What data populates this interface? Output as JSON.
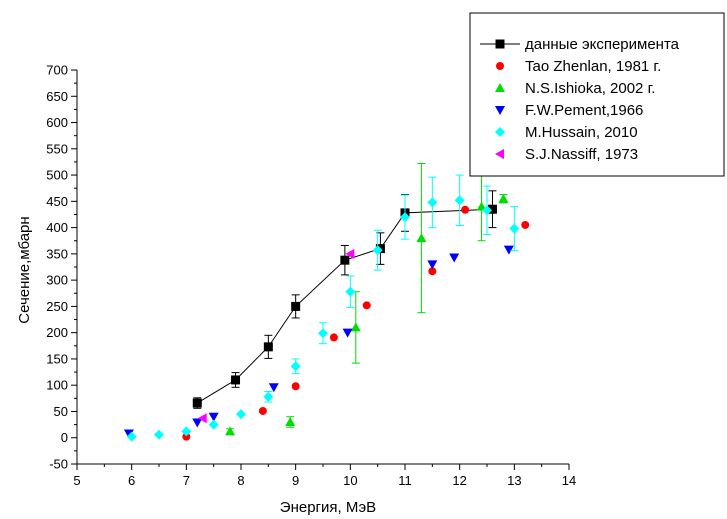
{
  "chart_data": {
    "type": "scatter",
    "title": "",
    "xlabel": "Энергия, МэВ",
    "ylabel": "Сечение,мбарн",
    "xlim": [
      5,
      14
    ],
    "ylim": [
      -50,
      700
    ],
    "xticks": [
      5,
      6,
      7,
      8,
      9,
      10,
      11,
      12,
      13,
      14
    ],
    "yticks": [
      -50,
      0,
      50,
      100,
      150,
      200,
      250,
      300,
      350,
      400,
      450,
      500,
      550,
      600,
      650,
      700
    ],
    "grid": false,
    "legend_position": "top-right",
    "series": [
      {
        "name": "данные эксперимента",
        "marker": "square",
        "line": true,
        "color": "#000000",
        "points": [
          {
            "x": 7.2,
            "y": 66,
            "err": 10
          },
          {
            "x": 7.9,
            "y": 110,
            "err": 14
          },
          {
            "x": 8.5,
            "y": 173,
            "err": 22
          },
          {
            "x": 9.0,
            "y": 250,
            "err": 22
          },
          {
            "x": 9.9,
            "y": 338,
            "err": 28
          },
          {
            "x": 10.55,
            "y": 360,
            "err": 30
          },
          {
            "x": 11.0,
            "y": 428,
            "err": 35
          },
          {
            "x": 12.6,
            "y": 435,
            "err": 35
          }
        ]
      },
      {
        "name": "Tao Zhenlan, 1981 г.",
        "marker": "circle",
        "line": false,
        "color": "#ff0000",
        "points": [
          {
            "x": 7.0,
            "y": 2
          },
          {
            "x": 8.4,
            "y": 51
          },
          {
            "x": 9.0,
            "y": 98
          },
          {
            "x": 9.7,
            "y": 191
          },
          {
            "x": 10.3,
            "y": 252
          },
          {
            "x": 11.5,
            "y": 317
          },
          {
            "x": 12.1,
            "y": 434
          },
          {
            "x": 13.2,
            "y": 405
          }
        ]
      },
      {
        "name": "N.S.Ishioka, 2002 г.",
        "marker": "triangle-up",
        "line": false,
        "color": "#00dd00",
        "points": [
          {
            "x": 7.8,
            "y": 12,
            "err": 5
          },
          {
            "x": 8.9,
            "y": 30,
            "err": 10
          },
          {
            "x": 10.1,
            "y": 210,
            "err": 68
          },
          {
            "x": 11.3,
            "y": 380,
            "err": 142
          },
          {
            "x": 12.4,
            "y": 440,
            "err": 65
          },
          {
            "x": 12.8,
            "y": 455,
            "err": 8
          }
        ]
      },
      {
        "name": "F.W.Pement,1966",
        "marker": "triangle-down",
        "line": false,
        "color": "#0000ff",
        "points": [
          {
            "x": 5.95,
            "y": 8
          },
          {
            "x": 7.2,
            "y": 29
          },
          {
            "x": 7.5,
            "y": 40
          },
          {
            "x": 8.6,
            "y": 96
          },
          {
            "x": 9.95,
            "y": 200
          },
          {
            "x": 11.5,
            "y": 330
          },
          {
            "x": 11.9,
            "y": 343
          },
          {
            "x": 12.9,
            "y": 358
          }
        ]
      },
      {
        "name": "M.Hussain, 2010",
        "marker": "diamond",
        "line": false,
        "color": "#00ffff",
        "points": [
          {
            "x": 6.0,
            "y": 2
          },
          {
            "x": 6.5,
            "y": 6
          },
          {
            "x": 7.0,
            "y": 12
          },
          {
            "x": 7.5,
            "y": 25
          },
          {
            "x": 8.0,
            "y": 45
          },
          {
            "x": 8.5,
            "y": 78,
            "err": 10
          },
          {
            "x": 9.0,
            "y": 136,
            "err": 14
          },
          {
            "x": 9.5,
            "y": 199,
            "err": 20
          },
          {
            "x": 10.0,
            "y": 278,
            "err": 30
          },
          {
            "x": 10.5,
            "y": 357,
            "err": 38
          },
          {
            "x": 11.0,
            "y": 420,
            "err": 42
          },
          {
            "x": 11.5,
            "y": 448,
            "err": 48
          },
          {
            "x": 12.0,
            "y": 452,
            "err": 48
          },
          {
            "x": 12.5,
            "y": 433,
            "err": 46
          },
          {
            "x": 13.0,
            "y": 398,
            "err": 42
          }
        ]
      },
      {
        "name": "S.J.Nassiff, 1973",
        "marker": "triangle-left",
        "line": false,
        "color": "#ff00ff",
        "points": [
          {
            "x": 7.3,
            "y": 37
          },
          {
            "x": 10.0,
            "y": 350
          }
        ]
      }
    ]
  }
}
